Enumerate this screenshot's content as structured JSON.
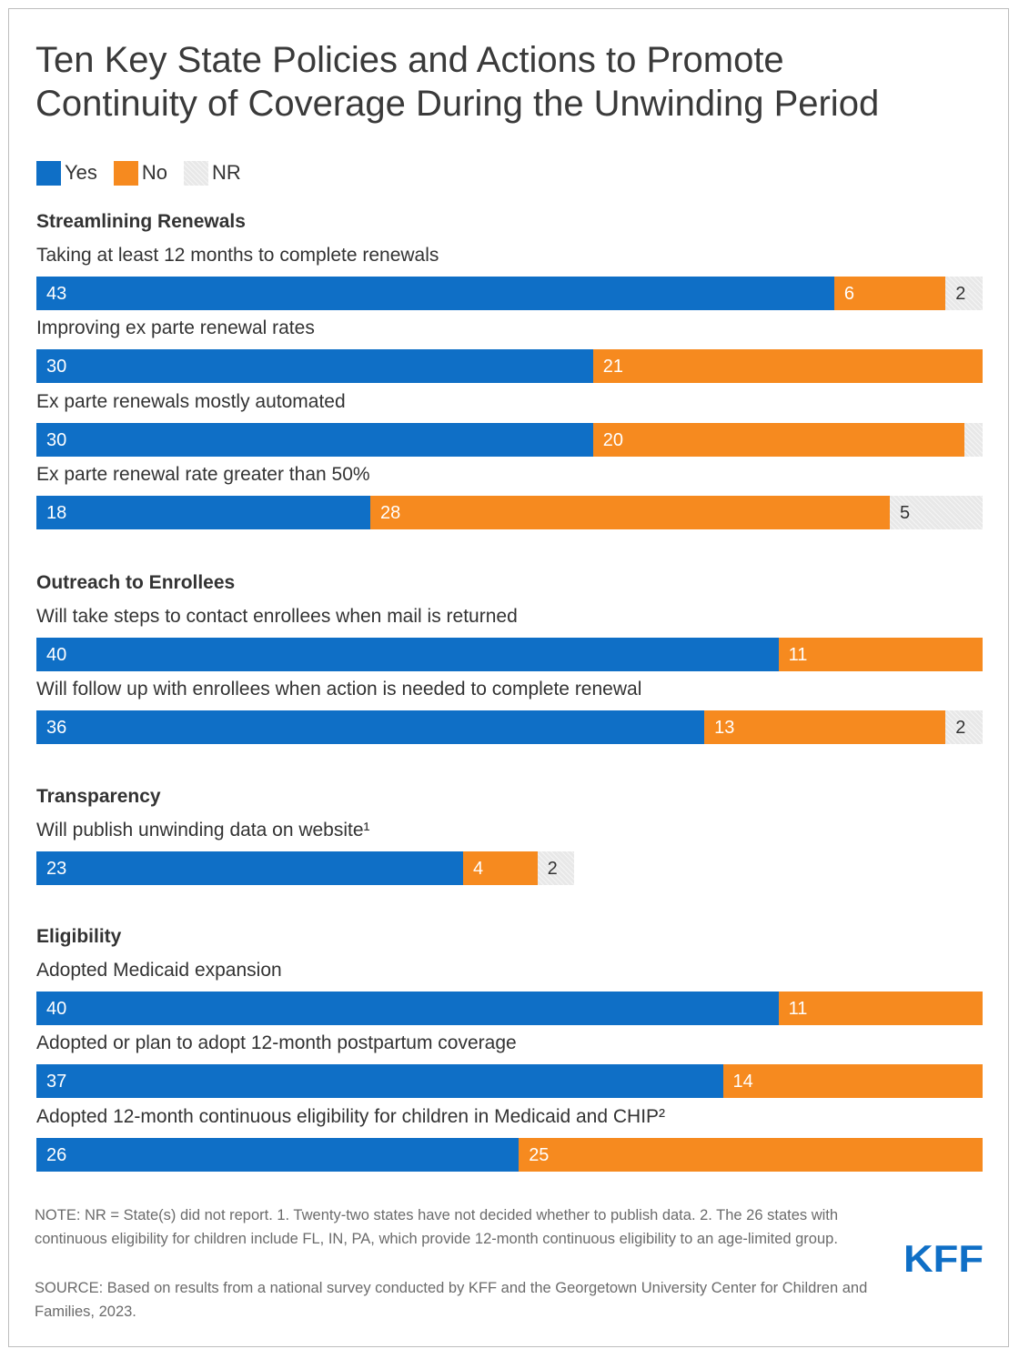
{
  "title_line1": "Ten Key State Policies and Actions to Promote",
  "title_line2": "Continuity of Coverage During the Unwinding Period",
  "legend": [
    {
      "label": "Yes",
      "color": "#0f6fc6"
    },
    {
      "label": "No",
      "color": "#f68a1f"
    },
    {
      "label": "NR",
      "color": "#e6e6e6"
    }
  ],
  "chart_data": {
    "type": "bar",
    "orientation": "horizontal-stacked",
    "series_names": [
      "Yes",
      "No",
      "NR"
    ],
    "groups": [
      {
        "title": "Streamlining Renewals",
        "rows": [
          {
            "label": "Taking at least 12 months to complete renewals",
            "values": [
              43,
              6,
              2
            ],
            "labels": [
              "43",
              "6",
              "2"
            ]
          },
          {
            "label": "Improving ex parte renewal rates",
            "values": [
              30,
              21,
              0
            ],
            "labels": [
              "30",
              "21",
              ""
            ]
          },
          {
            "label": "Ex parte renewals mostly automated",
            "values": [
              30,
              20,
              1
            ],
            "labels": [
              "30",
              "20",
              ""
            ]
          },
          {
            "label": "Ex parte renewal rate greater than 50%",
            "values": [
              18,
              28,
              5
            ],
            "labels": [
              "18",
              "28",
              "5"
            ]
          }
        ]
      },
      {
        "title": "Outreach to Enrollees",
        "rows": [
          {
            "label": "Will take steps to contact enrollees when mail is returned",
            "values": [
              40,
              11,
              0
            ],
            "labels": [
              "40",
              "11",
              ""
            ]
          },
          {
            "label": "Will follow up with enrollees when action is needed to complete renewal",
            "values": [
              36,
              13,
              2
            ],
            "labels": [
              "36",
              "13",
              "2"
            ]
          }
        ]
      },
      {
        "title": "Transparency",
        "rows": [
          {
            "label": "Will publish unwinding data on website¹",
            "values": [
              23,
              4,
              2
            ],
            "labels": [
              "23",
              "4",
              "2"
            ]
          }
        ]
      },
      {
        "title": "Eligibility",
        "rows": [
          {
            "label": "Adopted Medicaid expansion",
            "values": [
              40,
              11,
              0
            ],
            "labels": [
              "40",
              "11",
              ""
            ]
          },
          {
            "label": "Adopted or plan to adopt 12-month postpartum coverage",
            "values": [
              37,
              14,
              0
            ],
            "labels": [
              "37",
              "14",
              ""
            ]
          },
          {
            "label": "Adopted 12-month continuous eligibility for children in Medicaid and CHIP²",
            "values": [
              26,
              25,
              0
            ],
            "labels": [
              "26",
              "25",
              ""
            ]
          }
        ]
      }
    ],
    "max_total": 51,
    "xlabel": "",
    "ylabel": ""
  },
  "note": "NOTE: NR = State(s) did not report. 1. Twenty-two states have not decided whether to publish data. 2. The 26 states with continuous eligibility for children include FL, IN, PA, which provide 12-month continuous eligibility to an age-limited group.",
  "source": "SOURCE: Based on results from a national survey conducted by KFF and the Georgetown University Center for Children and Families, 2023.",
  "logo_text": "KFF"
}
